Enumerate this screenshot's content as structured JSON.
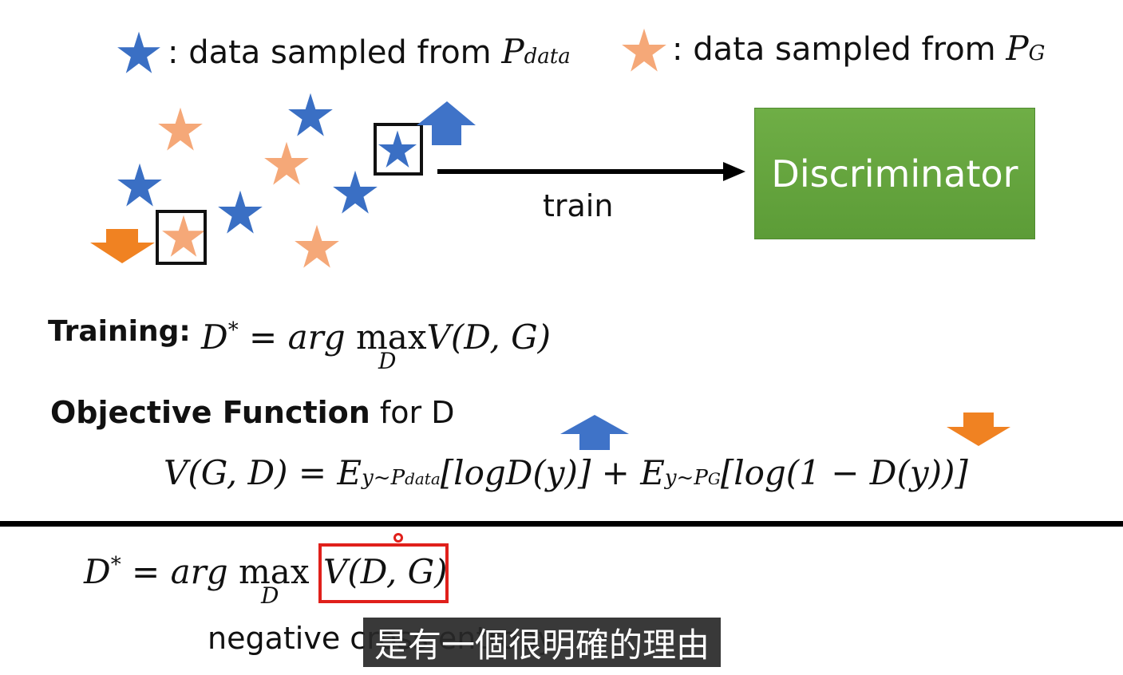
{
  "legend": {
    "real": {
      "text": ": data sampled from ",
      "symbol": "P",
      "subscript": "data",
      "color": "#3a6fc4",
      "icon": "blue-star-icon"
    },
    "gen": {
      "text": ": data sampled from ",
      "symbol": "P",
      "subscript": "G",
      "color": "#f5a878",
      "icon": "orange-star-icon"
    }
  },
  "colors": {
    "real_star": "#3a6fc4",
    "gen_star": "#f5a878",
    "up_arrow": "#3f73c8",
    "down_arrow": "#f08222",
    "discriminator": "#62a13c",
    "highlight": "#e0201b"
  },
  "discriminator": {
    "label": "Discriminator"
  },
  "train_arrow": {
    "label": "train"
  },
  "training": {
    "label": "Training:",
    "lhs": "D",
    "sup": "*",
    "eq": " = ",
    "arg": "arg",
    "max": "max",
    "under": "D",
    "rhs": "V(D, G)"
  },
  "objective": {
    "bold": "Objective Function",
    "rest": " for D",
    "lhs": "V(G, D) = E",
    "sub1": "y~P",
    "sub1b": "data",
    "mid": "[logD(y)] + E",
    "sub2": "y~P",
    "sub2b": "G",
    "end": "[log(1 − D(y))]"
  },
  "bottom": {
    "lhs": "D",
    "sup": "*",
    "eq": " = ",
    "arg": "arg",
    "max": "max",
    "under": "D",
    "boxed": "V(D, G)",
    "negative": "negative cross entropy"
  },
  "subtitle": "是有一個很明確的理由"
}
